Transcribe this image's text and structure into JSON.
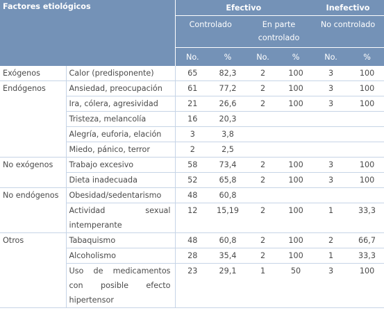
{
  "header": {
    "title": "Factores etiológicos",
    "group_effective": "Efectivo",
    "group_ineffective": "Inefectivo",
    "sub_controlled": "Controlado",
    "sub_partly_l1": "En parte",
    "sub_partly_l2": "controlado",
    "sub_not_controlled": "No controlado",
    "col_no": "No.",
    "col_pct": "%"
  },
  "rows": [
    {
      "category": "Exógenos",
      "cause": "Calor (predisponente)",
      "ctrl_no": "65",
      "ctrl_pct": "82,3",
      "part_no": "2",
      "part_pct": "100",
      "nc_no": "3",
      "nc_pct": "100"
    },
    {
      "category": "Endógenos",
      "cause": "Ansiedad, preocupación",
      "ctrl_no": "61",
      "ctrl_pct": "77,2",
      "part_no": "2",
      "part_pct": "100",
      "nc_no": "3",
      "nc_pct": "100"
    },
    {
      "category": "",
      "cause": "Ira, cólera, agresividad",
      "ctrl_no": "21",
      "ctrl_pct": "26,6",
      "part_no": "2",
      "part_pct": "100",
      "nc_no": "3",
      "nc_pct": "100"
    },
    {
      "category": "",
      "cause": "Tristeza, melancolía",
      "ctrl_no": "16",
      "ctrl_pct": "20,3",
      "part_no": "",
      "part_pct": "",
      "nc_no": "",
      "nc_pct": ""
    },
    {
      "category": "",
      "cause": "Alegría, euforia, elación",
      "ctrl_no": "3",
      "ctrl_pct": "3,8",
      "part_no": "",
      "part_pct": "",
      "nc_no": "",
      "nc_pct": ""
    },
    {
      "category": "",
      "cause": "Miedo, pánico, terror",
      "ctrl_no": "2",
      "ctrl_pct": "2,5",
      "part_no": "",
      "part_pct": "",
      "nc_no": "",
      "nc_pct": ""
    },
    {
      "category": "No exógenos",
      "cause": "Trabajo excesivo",
      "ctrl_no": "58",
      "ctrl_pct": "73,4",
      "part_no": "2",
      "part_pct": "100",
      "nc_no": "3",
      "nc_pct": "100"
    },
    {
      "category": "",
      "cause": "Dieta inadecuada",
      "ctrl_no": "52",
      "ctrl_pct": "65,8",
      "part_no": "2",
      "part_pct": "100",
      "nc_no": "3",
      "nc_pct": "100"
    },
    {
      "category": "No endógenos",
      "cause": "Obesidad/sedentarismo",
      "ctrl_no": "48",
      "ctrl_pct": "60,8",
      "part_no": "",
      "part_pct": "",
      "nc_no": "",
      "nc_pct": ""
    },
    {
      "category": "",
      "cause": "Actividad sexual intemperante",
      "ctrl_no": "12",
      "ctrl_pct": "15,19",
      "part_no": "2",
      "part_pct": "100",
      "nc_no": "1",
      "nc_pct": "33,3"
    },
    {
      "category": "Otros",
      "cause": "Tabaquismo",
      "ctrl_no": "48",
      "ctrl_pct": "60,8",
      "part_no": "2",
      "part_pct": "100",
      "nc_no": "2",
      "nc_pct": "66,7"
    },
    {
      "category": "",
      "cause": "Alcoholismo",
      "ctrl_no": "28",
      "ctrl_pct": "35,4",
      "part_no": "2",
      "part_pct": "100",
      "nc_no": "1",
      "nc_pct": "33,3"
    },
    {
      "category": "",
      "cause": "Uso de medicamentos con posible efecto hipertensor",
      "ctrl_no": "23",
      "ctrl_pct": "29,1",
      "part_no": "1",
      "part_pct": "50",
      "nc_no": "3",
      "nc_pct": "100"
    }
  ],
  "colors": {
    "header_bg": "#7492b7",
    "header_text": "#ffffff",
    "row_line": "#c6d4e6",
    "body_text": "#4a4a4a"
  }
}
